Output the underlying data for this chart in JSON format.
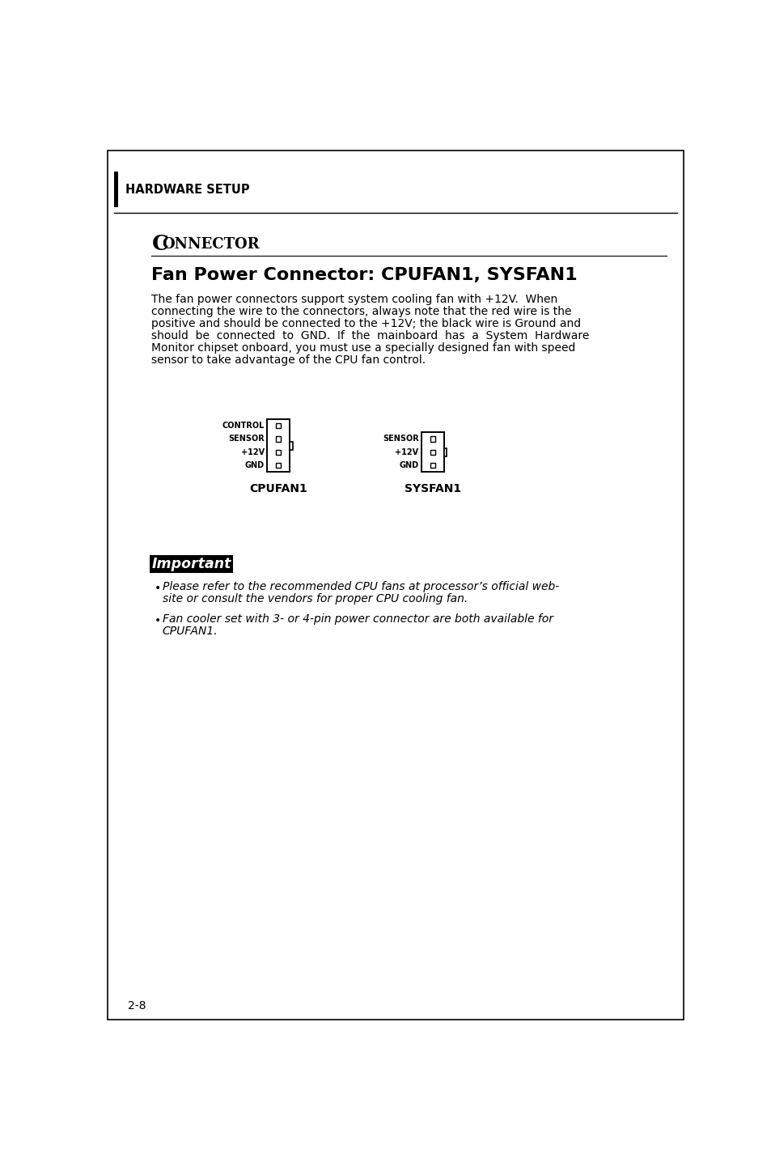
{
  "page_bg": "#ffffff",
  "outer_border_color": "#000000",
  "header_bar_color": "#000000",
  "header_text": "HARDWARE SETUP",
  "header_text_color": "#000000",
  "section_title_prefix": "C",
  "section_title_rest": "ONNECTOR",
  "fan_title": "Fan Power Connector: CPUFAN1, SYSFAN1",
  "body_lines": [
    "The fan power connectors support system cooling fan with +12V.  When",
    "connecting the wire to the connectors, always note that the red wire is the",
    "positive and should be connected to the +12V; the black wire is Ground and",
    "should  be  connected  to  GND.  If  the  mainboard  has  a  System  Hardware",
    "Monitor chipset onboard, you must use a specially designed fan with speed",
    "sensor to take advantage of the CPU fan control."
  ],
  "cpufan_labels": [
    "CONTROL",
    "SENSOR",
    "+12V",
    "GND"
  ],
  "sysfan_labels": [
    "SENSOR",
    "+12V",
    "GND"
  ],
  "cpufan_name": "CPUFAN1",
  "sysfan_name": "SYSFAN1",
  "important_label": "Important",
  "bullet1_lines": [
    "Please refer to the recommended CPU fans at processor’s official web-",
    "site or consult the vendors for proper CPU cooling fan."
  ],
  "bullet2_lines": [
    "Fan cooler set with 3- or 4-pin power connector are both available for",
    "CPUFAN1."
  ],
  "page_number": "2-8",
  "line_color": "#000000",
  "connector_box_color": "#000000",
  "connector_fill": "#ffffff"
}
